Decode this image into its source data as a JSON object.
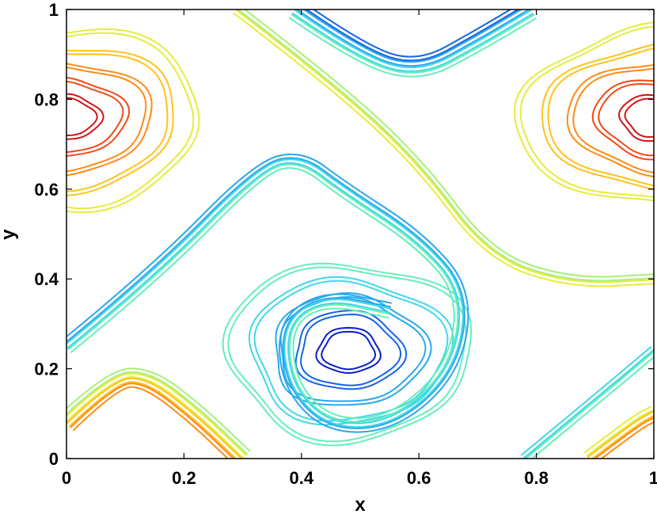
{
  "chart_data": {
    "type": "contour",
    "title": "",
    "xlabel": "x",
    "ylabel": "y",
    "xlim": [
      0,
      1
    ],
    "ylim": [
      0,
      1
    ],
    "xticks": [
      "0",
      "0.2",
      "0.4",
      "0.6",
      "0.8",
      "1"
    ],
    "yticks": [
      "0",
      "0.2",
      "0.4",
      "0.6",
      "0.8",
      "1"
    ],
    "xtick_values": [
      0,
      0.2,
      0.4,
      0.6,
      0.8,
      1
    ],
    "ytick_values": [
      0,
      0.2,
      0.4,
      0.6,
      0.8,
      1
    ],
    "grid": false,
    "colormap": "jet",
    "level_colors": [
      "#0a1ecc",
      "#1464e6",
      "#28a8ee",
      "#3fd8e8",
      "#66eebb",
      "#a8f07a",
      "#e6ec3c",
      "#ffc21a",
      "#ff8a14",
      "#f04a1a",
      "#d21414"
    ],
    "features": [
      {
        "kind": "vortex",
        "center": [
          0.48,
          0.24
        ],
        "sign": "min",
        "rx": 0.2,
        "ry": 0.19,
        "levels": [
          0,
          1,
          2,
          3,
          4
        ]
      },
      {
        "kind": "vortex",
        "center": [
          0.0,
          0.76
        ],
        "sign": "max",
        "rx": 0.22,
        "ry": 0.19,
        "levels": [
          10,
          9,
          8,
          7,
          6
        ]
      },
      {
        "kind": "vortex",
        "center": [
          1.0,
          0.76
        ],
        "sign": "max",
        "rx": 0.22,
        "ry": 0.19,
        "levels": [
          10,
          9,
          8,
          7,
          6
        ]
      },
      {
        "kind": "band",
        "points": [
          [
            0.0,
            0.25
          ],
          [
            0.15,
            0.41
          ],
          [
            0.33,
            0.65
          ],
          [
            0.4,
            0.67
          ],
          [
            0.47,
            0.6
          ],
          [
            0.6,
            0.49
          ],
          [
            0.68,
            0.37
          ],
          [
            0.66,
            0.2
          ],
          [
            0.56,
            0.08
          ],
          [
            0.45,
            0.07
          ],
          [
            0.38,
            0.16
          ],
          [
            0.37,
            0.3
          ],
          [
            0.44,
            0.36
          ],
          [
            0.55,
            0.33
          ]
        ],
        "levels": [
          2,
          3,
          4
        ]
      },
      {
        "kind": "band",
        "points": [
          [
            0.39,
            1.0
          ],
          [
            0.5,
            0.9
          ],
          [
            0.6,
            0.86
          ],
          [
            0.7,
            0.93
          ],
          [
            0.79,
            1.0
          ]
        ],
        "levels": [
          1,
          2,
          3,
          4
        ]
      },
      {
        "kind": "band",
        "points": [
          [
            0.29,
            1.0
          ],
          [
            0.45,
            0.84
          ],
          [
            0.6,
            0.66
          ],
          [
            0.72,
            0.45
          ],
          [
            0.86,
            0.39
          ],
          [
            1.0,
            0.4
          ]
        ],
        "levels": [
          5,
          6
        ]
      },
      {
        "kind": "band",
        "points": [
          [
            0.0,
            0.08
          ],
          [
            0.08,
            0.18
          ],
          [
            0.14,
            0.18
          ],
          [
            0.22,
            0.1
          ],
          [
            0.3,
            0.0
          ]
        ],
        "levels": [
          5,
          6,
          7,
          8
        ]
      },
      {
        "kind": "band",
        "points": [
          [
            0.78,
            0.0
          ],
          [
            0.9,
            0.13
          ],
          [
            1.0,
            0.24
          ]
        ],
        "levels": [
          3,
          4
        ]
      },
      {
        "kind": "band",
        "points": [
          [
            0.89,
            0.0
          ],
          [
            0.97,
            0.08
          ],
          [
            1.0,
            0.1
          ]
        ],
        "levels": [
          6,
          7,
          8
        ]
      }
    ]
  }
}
